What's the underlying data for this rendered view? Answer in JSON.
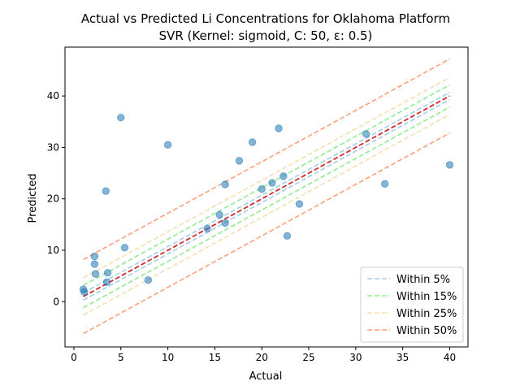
{
  "chart_data": {
    "type": "scatter",
    "title": "Actual vs Predicted Li Concentrations for Oklahoma Platform",
    "subtitle": "SVR (Kernel: sigmoid, C: 50, ε: 0.5)",
    "xlabel": "Actual",
    "ylabel": "Predicted",
    "xlim": [
      -0.95,
      41.95
    ],
    "ylim": [
      -8.8,
      49.5
    ],
    "xticks": [
      0,
      5,
      10,
      15,
      20,
      25,
      30,
      35,
      40
    ],
    "yticks": [
      0,
      10,
      20,
      30,
      40
    ],
    "grid": false,
    "legend_position": "bottom-right",
    "points": {
      "color": "#1f77b4",
      "alpha": 0.55,
      "x": [
        1.0,
        1.1,
        2.2,
        2.2,
        2.3,
        3.4,
        3.5,
        3.6,
        5.0,
        5.4,
        7.9,
        10.0,
        14.2,
        15.5,
        16.1,
        16.1,
        17.6,
        19.0,
        20.0,
        21.1,
        21.8,
        22.3,
        22.7,
        24.0,
        31.1,
        33.1,
        40.0
      ],
      "y": [
        2.4,
        1.9,
        8.8,
        7.3,
        5.4,
        21.5,
        3.8,
        5.6,
        35.8,
        10.5,
        4.2,
        30.5,
        14.2,
        16.9,
        15.3,
        22.8,
        27.4,
        31.0,
        21.9,
        23.1,
        33.7,
        24.4,
        12.8,
        19.0,
        32.6,
        22.9,
        26.6
      ]
    },
    "ideal_line": {
      "color": "#d62728",
      "x": [
        1.0,
        40.0
      ],
      "y": [
        1.0,
        40.0
      ]
    },
    "bands": [
      {
        "name": "Within 5%",
        "pct": 0.05,
        "color": "#a6cee3"
      },
      {
        "name": "Within 15%",
        "pct": 0.15,
        "color": "#90ee90"
      },
      {
        "name": "Within 25%",
        "pct": 0.25,
        "color": "#f5deb3"
      },
      {
        "name": "Within 50%",
        "pct": 0.5,
        "color": "#ffa07a"
      }
    ],
    "band_offset_range": 40.0
  }
}
